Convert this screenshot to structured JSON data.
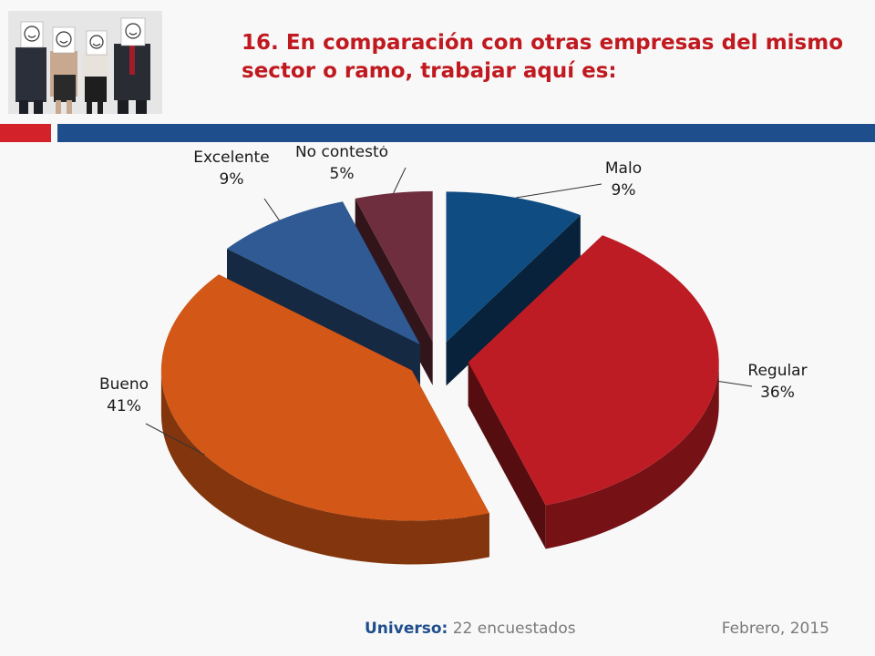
{
  "slide": {
    "title": "16. En comparación con otras empresas del mismo sector o ramo, trabajar aquí es:",
    "footer": {
      "universe_label": "Universo:",
      "universe_value": "22 encuestados",
      "date": "Febrero, 2015"
    },
    "colors": {
      "title": "#c0191f",
      "bar_red": "#d4222a",
      "bar_blue": "#1f4e8c"
    }
  },
  "chart_data": {
    "type": "pie",
    "style": "3d-exploded",
    "title": "",
    "slices": [
      {
        "label": "Malo",
        "value": 9,
        "display": "9%",
        "color": "#0f4c81"
      },
      {
        "label": "Regular",
        "value": 36,
        "display": "36%",
        "color": "#be1c24"
      },
      {
        "label": "Bueno",
        "value": 41,
        "display": "41%",
        "color": "#d35716"
      },
      {
        "label": "Excelente",
        "value": 9,
        "display": "9%",
        "color": "#2f5a94"
      },
      {
        "label": "No contestó",
        "value": 5,
        "display": "5%",
        "color": "#6e2e3d"
      }
    ]
  }
}
